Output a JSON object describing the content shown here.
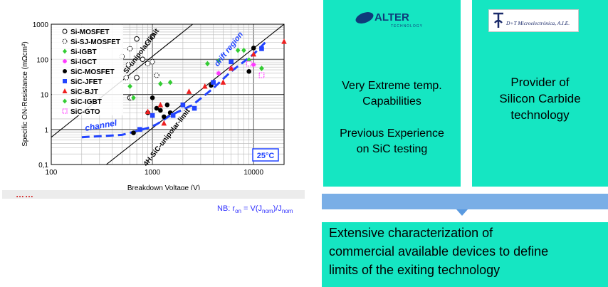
{
  "chart_data": {
    "type": "scatter",
    "xscale": "log",
    "yscale": "log",
    "xlim": [
      100,
      20000
    ],
    "ylim": [
      0.1,
      1000
    ],
    "xlabel": "Breakdown Voltage (V)",
    "ylabel": "Specific ON-Resistance (mΩcm²)",
    "x_ticks": [
      "100",
      "1000",
      "10000"
    ],
    "y_ticks": [
      "0,1",
      "1",
      "10",
      "100",
      "1000"
    ],
    "grid": true,
    "legend_position": "top-left",
    "series": [
      {
        "name": "Si-MOSFET",
        "color": "#000000",
        "marker": "circle-open",
        "points": [
          [
            600,
            8
          ],
          [
            700,
            30
          ],
          [
            800,
            100
          ],
          [
            900,
            300
          ],
          [
            1000,
            450
          ],
          [
            700,
            380
          ]
        ]
      },
      {
        "name": "Si-SJ-MOSFET",
        "color": "#000000",
        "marker": "circle-open-dotted",
        "points": [
          [
            500,
            120
          ],
          [
            550,
            30
          ],
          [
            580,
            70
          ],
          [
            600,
            200
          ],
          [
            620,
            8
          ],
          [
            900,
            75
          ],
          [
            1000,
            85
          ],
          [
            1100,
            35
          ]
        ]
      },
      {
        "name": "Si-IGBT",
        "color": "#33cc33",
        "marker": "diamond",
        "points": [
          [
            600,
            17
          ],
          [
            650,
            8
          ],
          [
            1200,
            20
          ],
          [
            1500,
            22
          ],
          [
            3500,
            75
          ],
          [
            4500,
            90
          ],
          [
            7000,
            180
          ],
          [
            12000,
            55
          ]
        ]
      },
      {
        "name": "Si-IGCT",
        "color": "#ff33ff",
        "marker": "star",
        "points": [
          [
            4500,
            40
          ],
          [
            6000,
            55
          ],
          [
            10000,
            70
          ]
        ]
      },
      {
        "name": "SiC-MOSFET",
        "color": "#000000",
        "marker": "circle",
        "points": [
          [
            650,
            0.8
          ],
          [
            900,
            3
          ],
          [
            1000,
            8
          ],
          [
            1100,
            4
          ],
          [
            1200,
            3.5
          ],
          [
            1300,
            2.3
          ],
          [
            1400,
            5
          ],
          [
            1500,
            3
          ],
          [
            3800,
            18
          ],
          [
            9000,
            45
          ],
          [
            10000,
            210
          ]
        ]
      },
      {
        "name": "SiC-JFET",
        "color": "#2244ff",
        "marker": "square",
        "points": [
          [
            750,
            1
          ],
          [
            1000,
            2.5
          ],
          [
            1600,
            2.5
          ],
          [
            2000,
            5
          ],
          [
            2600,
            4
          ],
          [
            4000,
            22
          ],
          [
            6000,
            85
          ],
          [
            12000,
            200
          ]
        ]
      },
      {
        "name": "SiC-BJT",
        "color": "#ee2020",
        "marker": "triangle",
        "points": [
          [
            900,
            3.2
          ],
          [
            1200,
            5
          ],
          [
            1300,
            1.5
          ],
          [
            2300,
            12
          ],
          [
            3300,
            17
          ],
          [
            5000,
            22
          ],
          [
            6000,
            55
          ],
          [
            10000,
            140
          ],
          [
            20000,
            320
          ]
        ]
      },
      {
        "name": "SiC-IGBT",
        "color": "#33cc33",
        "marker": "diamond",
        "points": [
          [
            8000,
            180
          ],
          [
            12000,
            55
          ],
          [
            9000,
            95
          ]
        ]
      },
      {
        "name": "SiC-GTO",
        "color": "#ff33ff",
        "marker": "square-dotted",
        "points": [
          [
            12000,
            35
          ],
          [
            9000,
            75
          ]
        ]
      }
    ],
    "limit_lines": [
      {
        "label": "Si-unipolar-limit",
        "points": [
          [
            100,
            0.6
          ],
          [
            2500,
            1000
          ]
        ]
      },
      {
        "label": "4H-SiC-unipolar-limit",
        "points": [
          [
            350,
            0.1
          ],
          [
            20000,
            1000
          ]
        ]
      }
    ],
    "annotations": [
      {
        "text": "channel",
        "color": "#2244ff"
      },
      {
        "text": "drift region",
        "color": "#2244ff"
      },
      {
        "text": "25°C",
        "color": "#2244ff"
      }
    ],
    "dashed_trend": [
      [
        200,
        0.6
      ],
      [
        500,
        0.7
      ],
      [
        650,
        0.85
      ],
      [
        900,
        1.1
      ],
      [
        1100,
        1.4
      ],
      [
        1500,
        2.5
      ],
      [
        2500,
        5
      ],
      [
        4000,
        15
      ],
      [
        6000,
        45
      ],
      [
        10000,
        140
      ],
      [
        13000,
        300
      ]
    ]
  },
  "nb": {
    "prefix": "NB: r",
    "sub1": "on",
    "mid": " = V(J",
    "sub2": "nom",
    "mid2": ")/J",
    "sub3": "nom"
  },
  "marker": "……",
  "box_left": {
    "logo_text": "ALTER",
    "logo_sub": "TECHNOLOGY",
    "line1": "Very Extreme temp.",
    "line2": "Capabilities",
    "line3": "Previous Experience",
    "line4": "on SiC testing"
  },
  "box_right": {
    "logo_text": "D+T Microelectrónica, A.I.E.",
    "line1": "Provider of",
    "line2": "Silicon Carbide",
    "line3": "technology"
  },
  "bottom": {
    "line1": "Extensive characterization of",
    "line2": "commercial available devices to define",
    "line3": "limits of the exiting technology"
  }
}
